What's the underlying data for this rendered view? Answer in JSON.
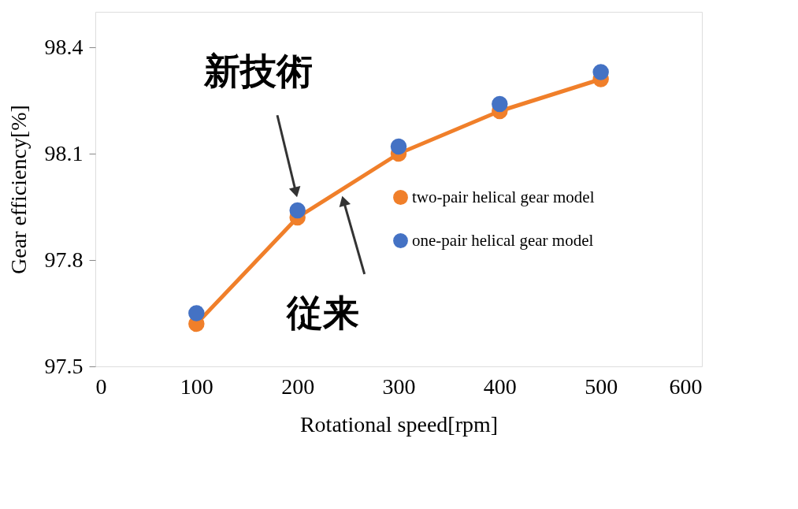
{
  "chart_data": {
    "type": "line",
    "xlabel": "Rotational speed[rpm]",
    "ylabel": "Gear efficiency[%]",
    "x": [
      100,
      200,
      300,
      400,
      500
    ],
    "series": [
      {
        "name": "two-pair helical gear model",
        "marker": "circle",
        "color": "#f07f2a",
        "values": [
          97.62,
          97.92,
          98.1,
          98.22,
          98.31
        ]
      },
      {
        "name": "one-pair helical gear model",
        "type": "scatter",
        "marker": "circle",
        "color": "#4472c4",
        "values": [
          97.65,
          97.94,
          98.12,
          98.24,
          98.33
        ]
      }
    ],
    "xlim": [
      0,
      600
    ],
    "xticks": [
      0,
      100,
      200,
      300,
      400,
      500,
      600
    ],
    "ylim": [
      97.5,
      98.5
    ],
    "yticks": [
      {
        "value": 97.5,
        "label": "97.5"
      },
      {
        "value": 97.8,
        "label": "97.8"
      },
      {
        "value": 98.1,
        "label": "98.1"
      },
      {
        "value": 98.4,
        "label": "98.4"
      }
    ],
    "legend": "right",
    "grid": false,
    "annotations": [
      "新技術",
      "従来"
    ]
  }
}
